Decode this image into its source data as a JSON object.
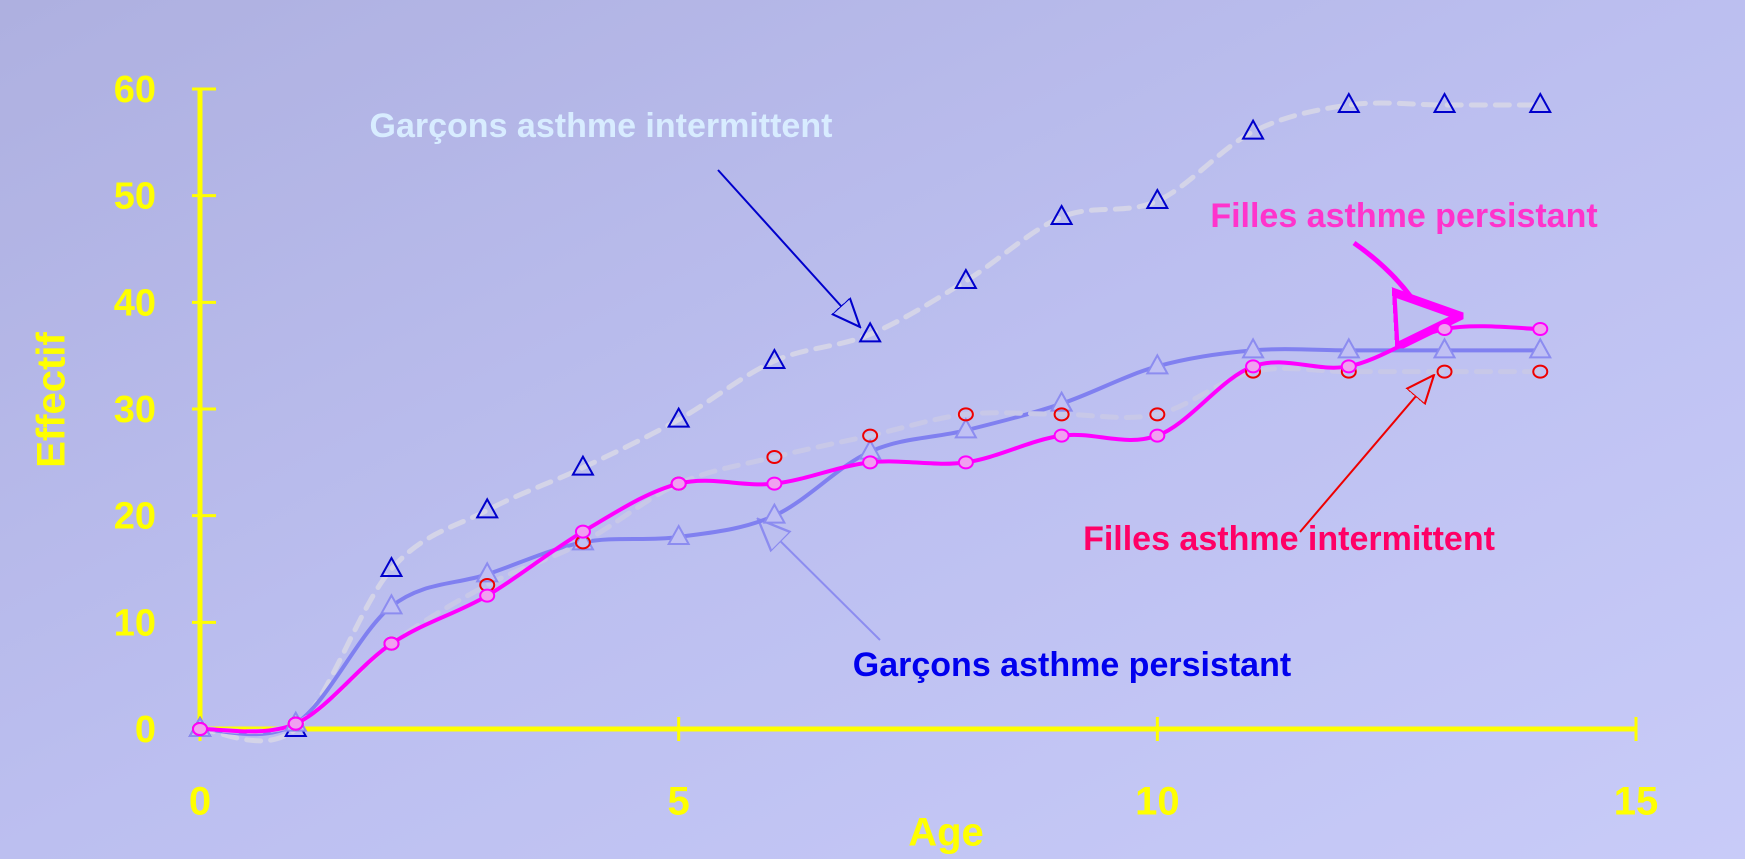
{
  "chart_data": {
    "type": "line",
    "x_label": "Age",
    "y_label": "Effectif",
    "x": [
      0,
      1,
      2,
      3,
      4,
      5,
      6,
      7,
      8,
      9,
      10,
      11,
      12,
      13,
      14
    ],
    "xlim": [
      0,
      15
    ],
    "xticks": [
      0,
      5,
      10,
      15
    ],
    "ylim": [
      0,
      60
    ],
    "yticks": [
      0,
      10,
      20,
      30,
      40,
      50,
      60
    ],
    "axis_color": "#ffff00",
    "series": [
      {
        "name": "Garçons asthme intermittent",
        "color": "#0000cc",
        "line_color": "#d4d4e8",
        "label_color": "#d8ecff",
        "marker": "triangle",
        "dashed": true,
        "values": [
          0,
          0,
          15,
          20.5,
          24.5,
          29,
          34.5,
          37,
          42,
          48,
          49.5,
          56,
          58.5,
          58.5,
          58.5
        ]
      },
      {
        "name": "Garçons asthme persistant",
        "color": "#8c8cf0",
        "line_color": "#8080f0",
        "label_color": "#0000ee",
        "marker": "triangle",
        "dashed": false,
        "values": [
          0,
          0.5,
          11.5,
          14.5,
          17.5,
          18,
          20,
          26,
          28,
          30.5,
          34,
          35.5,
          35.5,
          35.5,
          35.5
        ]
      },
      {
        "name": "Filles asthme intermittent",
        "color": "#ee0000",
        "line_color": "#c8c8e8",
        "label_color": "#ff0066",
        "marker": "circle",
        "dashed": true,
        "values": [
          0,
          0.5,
          8,
          13.5,
          17.5,
          23,
          25.5,
          27.5,
          29.5,
          29.5,
          29.5,
          33.5,
          33.5,
          33.5,
          33.5
        ]
      },
      {
        "name": "Filles asthme persistant",
        "color": "#ff00ff",
        "line_color": "#ff00ff",
        "label_color": "#ff33cc",
        "marker": "circle",
        "dashed": false,
        "values": [
          0,
          0.5,
          8,
          12.5,
          18.5,
          23,
          23,
          25,
          25,
          27.5,
          27.5,
          34,
          34,
          37.5,
          37.5
        ]
      }
    ]
  }
}
